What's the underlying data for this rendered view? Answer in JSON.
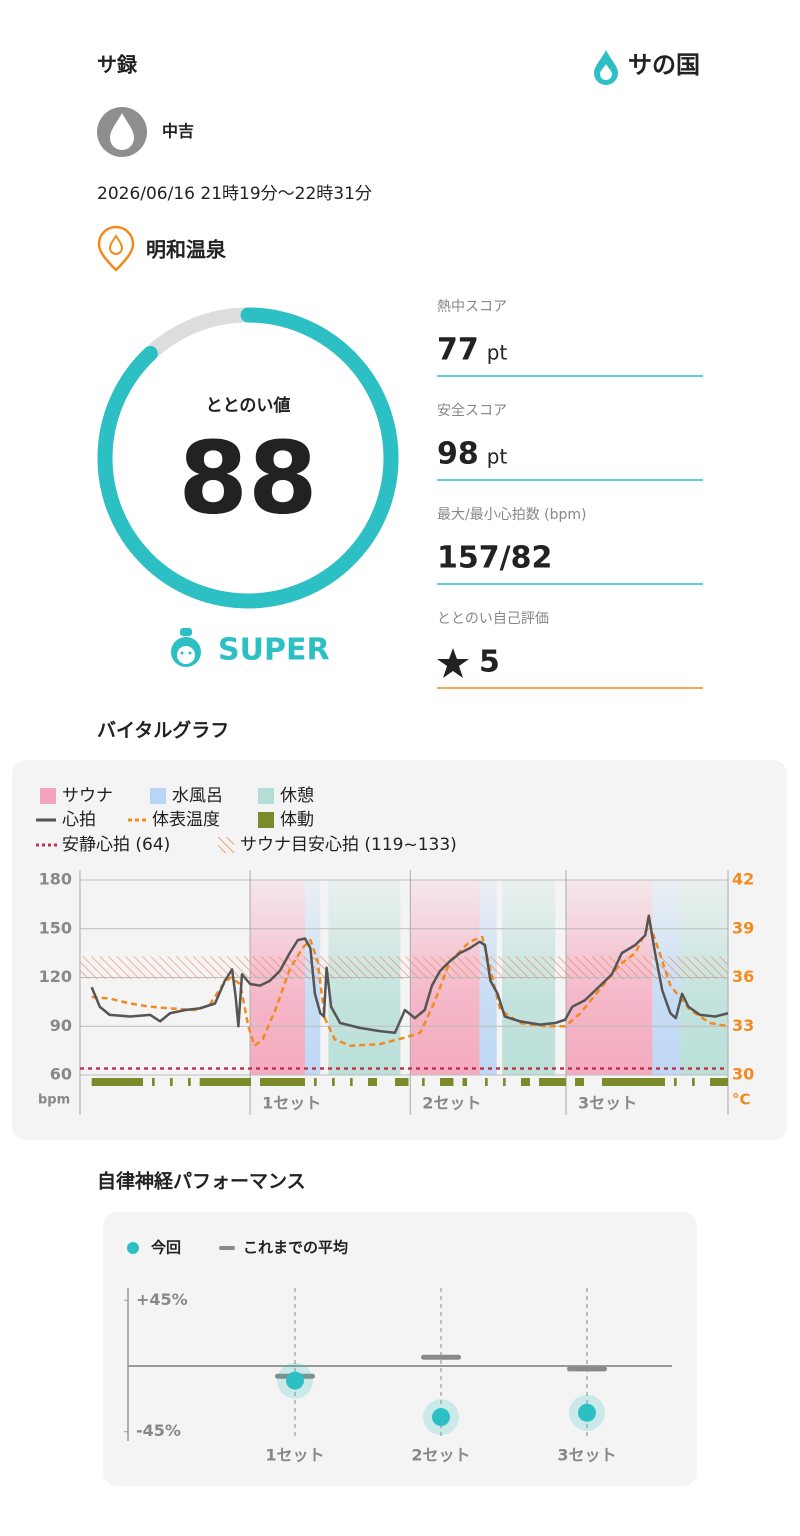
{
  "header": {
    "title": "サ録",
    "brand": "サの国"
  },
  "user": {
    "name": "中吉"
  },
  "datetime": "2026/06/16 21時19分〜22時31分",
  "facility": "明和温泉",
  "totonoi": {
    "label": "ととのい値",
    "value": 88,
    "range": [
      0,
      100
    ],
    "rank": "SUPER"
  },
  "scores": [
    {
      "label": "熱中スコア",
      "value": 77,
      "unit": "pt"
    },
    {
      "label": "安全スコア",
      "value": 98,
      "unit": "pt"
    },
    {
      "label": "最大/最小心拍数 (bpm)",
      "value": "157/82"
    },
    {
      "label": "ととのい自己評価",
      "value": 5
    }
  ],
  "vital_graph": {
    "title": "バイタルグラフ",
    "xlim": [
      0,
      72
    ],
    "ylim": [
      60,
      180
    ],
    "yticks": [
      60,
      90,
      120,
      150,
      180
    ],
    "y_unit": "bpm",
    "y2lim": [
      30,
      42
    ],
    "y2ticks": [
      30,
      33,
      36,
      39,
      42
    ],
    "y2_unit": "°C",
    "set_ticks": [
      {
        "value": 18.9,
        "label": "1セット"
      },
      {
        "value": 36.7,
        "label": "2セット"
      },
      {
        "value": 54,
        "label": "3セット"
      }
    ],
    "zones": [
      {
        "name": "サウナ",
        "color": "#f4a3ba",
        "ranges": [
          [
            18.9,
            25
          ],
          [
            36.7,
            44.4
          ],
          [
            54,
            63.6
          ]
        ]
      },
      {
        "name": "水風呂",
        "color": "#b9d5f5",
        "ranges": [
          [
            25,
            26.7
          ],
          [
            44.4,
            46.3
          ],
          [
            63.6,
            66.7
          ]
        ]
      },
      {
        "name": "休憩",
        "color": "#b4ddd6",
        "ranges": [
          [
            27.6,
            35.6
          ],
          [
            46.9,
            52.8
          ],
          [
            66.7,
            72
          ]
        ]
      }
    ],
    "heart_rate": {
      "name": "心拍",
      "color": "#555555",
      "x": [
        1.3,
        2.2,
        3.3,
        5.6,
        7.8,
        8.9,
        10,
        11.7,
        13.3,
        15,
        16.1,
        16.9,
        17.3,
        17.6,
        18,
        18.9,
        20,
        21.1,
        22.2,
        23.3,
        24.2,
        25,
        25.6,
        26.1,
        26.7,
        27.1,
        27.4,
        27.9,
        28.9,
        31.1,
        33.3,
        35,
        36.1,
        37.2,
        38.3,
        39.1,
        40,
        41.1,
        42.2,
        43.3,
        44.4,
        45,
        45.6,
        46.4,
        47.2,
        48.9,
        51.1,
        52.8,
        53.9,
        54.7,
        56.1,
        57.8,
        59.1,
        60.2,
        61.7,
        62.8,
        63.2,
        63.9,
        64.7,
        65.6,
        66.2,
        66.9,
        67.6,
        68.9,
        70.6,
        72
      ],
      "values": [
        114,
        102,
        97,
        96,
        97,
        93,
        98,
        100,
        101,
        104,
        118,
        125,
        108,
        90,
        122,
        116,
        115,
        118,
        124,
        135,
        143,
        144,
        138,
        110,
        98,
        96,
        126,
        102,
        92,
        89,
        87,
        86,
        100,
        95,
        100,
        115,
        124,
        130,
        135,
        138,
        142,
        140,
        118,
        110,
        96,
        93,
        91,
        92,
        94,
        102,
        106,
        115,
        122,
        135,
        140,
        146,
        158,
        135,
        112,
        98,
        95,
        110,
        102,
        97,
        96,
        98
      ]
    },
    "temperature": {
      "name": "体表温度",
      "color": "#f28b1e",
      "axis": "y2",
      "x": [
        1.3,
        3.3,
        5.6,
        7.8,
        10,
        12.8,
        14.4,
        15.8,
        16.7,
        17.8,
        18.7,
        19.4,
        20.3,
        21.7,
        23.3,
        24.7,
        25.6,
        26.4,
        27.2,
        28.3,
        30,
        33.3,
        36.1,
        37.8,
        39.4,
        41.1,
        43.3,
        44.7,
        45.8,
        46.7,
        48.9,
        51.7,
        53.9,
        55.6,
        57.8,
        60,
        61.7,
        63.3,
        64.4,
        65.6,
        67.8,
        70,
        72
      ],
      "values": [
        34.8,
        34.7,
        34.4,
        34.2,
        34.1,
        34,
        34.3,
        35.5,
        36,
        35.6,
        33,
        31.8,
        32.2,
        34,
        36.5,
        37.8,
        38.3,
        37,
        33.5,
        32.2,
        31.8,
        31.9,
        32.3,
        32.6,
        34.5,
        37,
        38.2,
        38.5,
        36,
        34,
        33.2,
        33,
        33,
        33.8,
        35.3,
        36.8,
        37.5,
        39.3,
        37.5,
        35.5,
        34,
        33.2,
        33
      ]
    },
    "motion": {
      "name": "体動",
      "color": "#7b8a2a",
      "ranges": [
        [
          1.3,
          7
        ],
        [
          8,
          8.3
        ],
        [
          10,
          10.3
        ],
        [
          12,
          12.3
        ],
        [
          13.3,
          19
        ],
        [
          20,
          25
        ],
        [
          26,
          26.3
        ],
        [
          28,
          28.3
        ],
        [
          30,
          30.3
        ],
        [
          32,
          33
        ],
        [
          35,
          36.5
        ],
        [
          38,
          38.3
        ],
        [
          40,
          41.5
        ],
        [
          42.5,
          43
        ],
        [
          45,
          45.3
        ],
        [
          47,
          47.3
        ],
        [
          49,
          50
        ],
        [
          51,
          54
        ],
        [
          55,
          56
        ],
        [
          58,
          65
        ],
        [
          66,
          66.3
        ],
        [
          68,
          68.3
        ],
        [
          70,
          72
        ]
      ]
    },
    "resting_hr": {
      "label": "安静心拍 (64)",
      "value": 64,
      "color": "#c4344e"
    },
    "target_hr": {
      "label": "サウナ目安心拍 (119~133)",
      "range": [
        119,
        133
      ],
      "color": "#f07a4a"
    }
  },
  "autonomic": {
    "title": "自律神経パフォーマンス",
    "categories": [
      "1セット",
      "2セット",
      "3セット"
    ],
    "ylim": [
      -50,
      50
    ],
    "yticks": [
      {
        "value": 45,
        "label": "+45%"
      },
      {
        "value": -45,
        "label": "-45%"
      }
    ],
    "series": [
      {
        "name": "今回",
        "color": "#2cbfc4",
        "values": [
          -10,
          -35,
          -32
        ]
      },
      {
        "name": "これまでの平均",
        "color": "#8a8a8a",
        "values": [
          -7,
          6,
          -2
        ]
      }
    ]
  }
}
